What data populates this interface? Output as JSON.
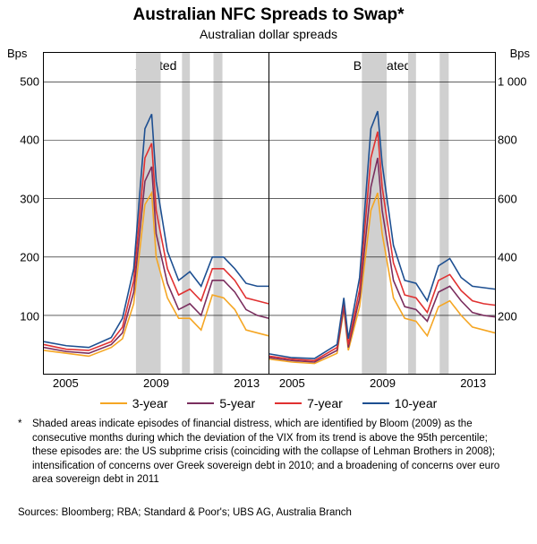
{
  "title": "Australian NFC Spreads to Swap*",
  "subtitle": "Australian dollar spreads",
  "y_unit_left": "Bps",
  "y_unit_right": "Bps",
  "panels": {
    "left": {
      "title": "A-rated",
      "ylim": [
        0,
        550
      ],
      "yticks": [
        100,
        200,
        300,
        400,
        500
      ],
      "xlim": [
        2004,
        2014
      ],
      "xticks": [
        2005,
        2009,
        2013
      ],
      "shaded": [
        [
          2008.1,
          2009.2
        ],
        [
          2010.15,
          2010.5
        ],
        [
          2011.55,
          2011.95
        ]
      ]
    },
    "right": {
      "title": "BBB-rated",
      "ylim": [
        0,
        1100
      ],
      "yticks": [
        200,
        400,
        600,
        800,
        1000
      ],
      "xlim": [
        2004,
        2014
      ],
      "xticks": [
        2005,
        2009,
        2013
      ],
      "shaded": [
        [
          2008.1,
          2009.2
        ],
        [
          2010.15,
          2010.5
        ],
        [
          2011.55,
          2011.95
        ]
      ]
    }
  },
  "series": [
    {
      "name": "3-year",
      "color": "#f5a623",
      "left": [
        [
          2004,
          40
        ],
        [
          2005,
          35
        ],
        [
          2006,
          30
        ],
        [
          2007,
          45
        ],
        [
          2007.5,
          60
        ],
        [
          2008,
          120
        ],
        [
          2008.5,
          290
        ],
        [
          2008.8,
          310
        ],
        [
          2009,
          200
        ],
        [
          2009.5,
          130
        ],
        [
          2010,
          95
        ],
        [
          2010.5,
          95
        ],
        [
          2011,
          75
        ],
        [
          2011.5,
          135
        ],
        [
          2012,
          130
        ],
        [
          2012.5,
          110
        ],
        [
          2013,
          75
        ],
        [
          2013.5,
          70
        ],
        [
          2014,
          65
        ]
      ],
      "right": [
        [
          2004,
          50
        ],
        [
          2005,
          40
        ],
        [
          2006,
          35
        ],
        [
          2007,
          70
        ],
        [
          2007.3,
          220
        ],
        [
          2007.5,
          80
        ],
        [
          2008,
          230
        ],
        [
          2008.5,
          560
        ],
        [
          2008.8,
          620
        ],
        [
          2009,
          480
        ],
        [
          2009.5,
          260
        ],
        [
          2010,
          190
        ],
        [
          2010.5,
          180
        ],
        [
          2011,
          130
        ],
        [
          2011.5,
          230
        ],
        [
          2012,
          250
        ],
        [
          2012.5,
          200
        ],
        [
          2013,
          160
        ],
        [
          2013.5,
          150
        ],
        [
          2014,
          140
        ]
      ]
    },
    {
      "name": "5-year",
      "color": "#7a2e5e",
      "left": [
        [
          2004,
          45
        ],
        [
          2005,
          38
        ],
        [
          2006,
          35
        ],
        [
          2007,
          50
        ],
        [
          2007.5,
          70
        ],
        [
          2008,
          140
        ],
        [
          2008.5,
          330
        ],
        [
          2008.8,
          355
        ],
        [
          2009,
          240
        ],
        [
          2009.5,
          155
        ],
        [
          2010,
          110
        ],
        [
          2010.5,
          120
        ],
        [
          2011,
          100
        ],
        [
          2011.5,
          160
        ],
        [
          2012,
          160
        ],
        [
          2012.5,
          140
        ],
        [
          2013,
          110
        ],
        [
          2013.5,
          100
        ],
        [
          2014,
          95
        ]
      ],
      "right": [
        [
          2004,
          55
        ],
        [
          2005,
          45
        ],
        [
          2006,
          40
        ],
        [
          2007,
          80
        ],
        [
          2007.3,
          230
        ],
        [
          2007.5,
          90
        ],
        [
          2008,
          260
        ],
        [
          2008.5,
          640
        ],
        [
          2008.8,
          740
        ],
        [
          2009,
          560
        ],
        [
          2009.5,
          320
        ],
        [
          2010,
          230
        ],
        [
          2010.5,
          220
        ],
        [
          2011,
          180
        ],
        [
          2011.5,
          280
        ],
        [
          2012,
          300
        ],
        [
          2012.5,
          250
        ],
        [
          2013,
          210
        ],
        [
          2013.5,
          200
        ],
        [
          2014,
          195
        ]
      ]
    },
    {
      "name": "7-year",
      "color": "#e03131",
      "left": [
        [
          2004,
          50
        ],
        [
          2005,
          42
        ],
        [
          2006,
          40
        ],
        [
          2007,
          55
        ],
        [
          2007.5,
          80
        ],
        [
          2008,
          160
        ],
        [
          2008.5,
          370
        ],
        [
          2008.8,
          395
        ],
        [
          2009,
          280
        ],
        [
          2009.5,
          180
        ],
        [
          2010,
          135
        ],
        [
          2010.5,
          145
        ],
        [
          2011,
          125
        ],
        [
          2011.5,
          180
        ],
        [
          2012,
          180
        ],
        [
          2012.5,
          160
        ],
        [
          2013,
          130
        ],
        [
          2013.5,
          125
        ],
        [
          2014,
          120
        ]
      ],
      "right": [
        [
          2004,
          60
        ],
        [
          2005,
          50
        ],
        [
          2006,
          45
        ],
        [
          2007,
          90
        ],
        [
          2007.3,
          245
        ],
        [
          2007.5,
          100
        ],
        [
          2008,
          290
        ],
        [
          2008.5,
          740
        ],
        [
          2008.8,
          830
        ],
        [
          2009,
          640
        ],
        [
          2009.5,
          380
        ],
        [
          2010,
          270
        ],
        [
          2010.5,
          260
        ],
        [
          2011,
          210
        ],
        [
          2011.5,
          320
        ],
        [
          2012,
          340
        ],
        [
          2012.5,
          285
        ],
        [
          2013,
          250
        ],
        [
          2013.5,
          240
        ],
        [
          2014,
          235
        ]
      ]
    },
    {
      "name": "10-year",
      "color": "#1d4f91",
      "left": [
        [
          2004,
          55
        ],
        [
          2005,
          48
        ],
        [
          2006,
          45
        ],
        [
          2007,
          62
        ],
        [
          2007.5,
          95
        ],
        [
          2008,
          180
        ],
        [
          2008.5,
          420
        ],
        [
          2008.8,
          445
        ],
        [
          2009,
          330
        ],
        [
          2009.5,
          210
        ],
        [
          2010,
          160
        ],
        [
          2010.5,
          175
        ],
        [
          2011,
          150
        ],
        [
          2011.5,
          200
        ],
        [
          2012,
          200
        ],
        [
          2012.5,
          180
        ],
        [
          2013,
          155
        ],
        [
          2013.5,
          150
        ],
        [
          2014,
          150
        ]
      ],
      "right": [
        [
          2004,
          68
        ],
        [
          2005,
          55
        ],
        [
          2006,
          52
        ],
        [
          2007,
          100
        ],
        [
          2007.3,
          260
        ],
        [
          2007.5,
          120
        ],
        [
          2008,
          330
        ],
        [
          2008.5,
          840
        ],
        [
          2008.8,
          900
        ],
        [
          2009,
          720
        ],
        [
          2009.5,
          440
        ],
        [
          2010,
          320
        ],
        [
          2010.5,
          310
        ],
        [
          2011,
          250
        ],
        [
          2011.5,
          370
        ],
        [
          2012,
          395
        ],
        [
          2012.5,
          330
        ],
        [
          2013,
          300
        ],
        [
          2013.5,
          295
        ],
        [
          2014,
          290
        ]
      ]
    }
  ],
  "legend_labels": [
    "3-year",
    "5-year",
    "7-year",
    "10-year"
  ],
  "footnote_marker": "*",
  "footnote": "Shaded areas indicate episodes of financial distress, which are identified by Bloom (2009) as the consecutive months during which the deviation of the VIX from its trend is above the 95th percentile; these episodes are: the US subprime crisis (coinciding with the collapse of Lehman Brothers in 2008); intensification of concerns over Greek sovereign debt in 2010; and a broadening of concerns over euro area sovereign debt in 2011",
  "sources": "Sources: Bloomberg; RBA; Standard & Poor's; UBS AG, Australia Branch",
  "style": {
    "title_fontsize": 19,
    "subtitle_fontsize": 14,
    "tick_fontsize": 13,
    "legend_fontsize": 14,
    "footnote_fontsize": 11.5,
    "line_width": 1.6,
    "grid_color": "#000000",
    "shade_color": "#d0d0d0",
    "background": "#ffffff"
  }
}
